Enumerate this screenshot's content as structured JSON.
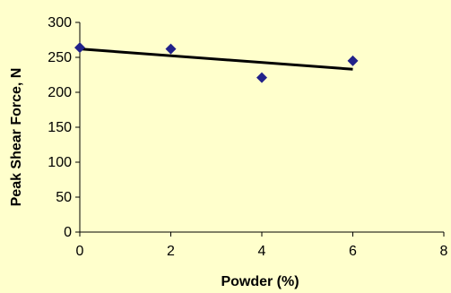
{
  "chart_data": {
    "type": "scatter",
    "xlabel": "Powder (%)",
    "ylabel": "Peak Shear Force, N",
    "xlim": [
      0,
      8
    ],
    "ylim": [
      0,
      300
    ],
    "xticks": [
      0,
      2,
      4,
      6,
      8
    ],
    "yticks": [
      0,
      50,
      100,
      150,
      200,
      250,
      300
    ],
    "grid": false,
    "series": [
      {
        "x": [
          0,
          2,
          4,
          6
        ],
        "y": [
          264,
          262,
          221,
          245
        ],
        "marker": "diamond",
        "color": "#22228a"
      }
    ],
    "trendline": {
      "x": [
        0,
        6
      ],
      "y": [
        262,
        233
      ],
      "color": "#000000"
    }
  }
}
